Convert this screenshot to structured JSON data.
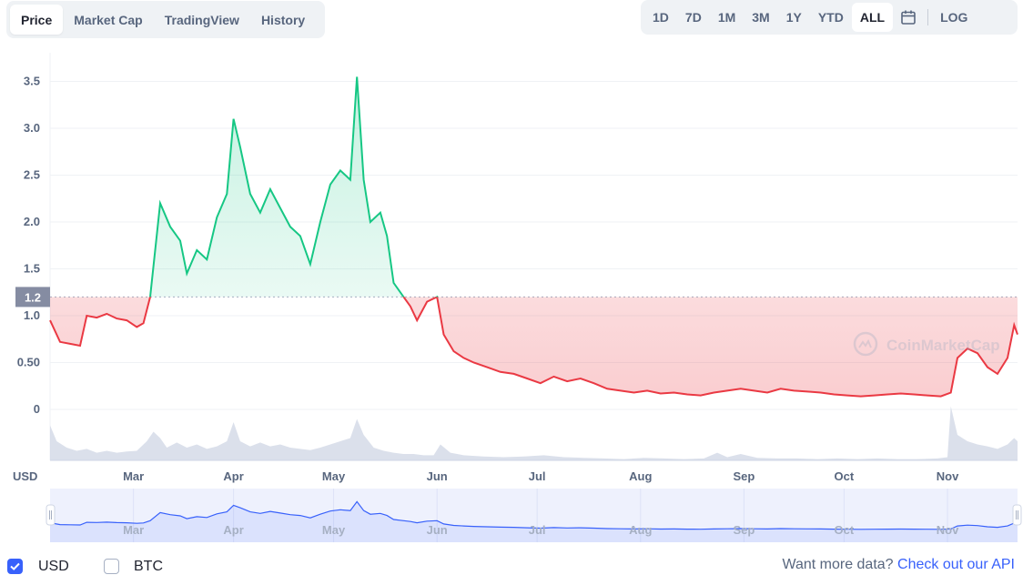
{
  "tabs": [
    {
      "label": "Price",
      "active": true
    },
    {
      "label": "Market Cap",
      "active": false
    },
    {
      "label": "TradingView",
      "active": false
    },
    {
      "label": "History",
      "active": false
    }
  ],
  "ranges": [
    {
      "label": "1D",
      "active": false
    },
    {
      "label": "7D",
      "active": false
    },
    {
      "label": "1M",
      "active": false
    },
    {
      "label": "3M",
      "active": false
    },
    {
      "label": "1Y",
      "active": false
    },
    {
      "label": "YTD",
      "active": false
    },
    {
      "label": "ALL",
      "active": true
    }
  ],
  "calendar_icon": "calendar-icon",
  "log_label": "LOG",
  "currency_label": "USD",
  "watermark": "CoinMarketCap",
  "footer": {
    "usd_label": "USD",
    "usd_checked": true,
    "btc_label": "BTC",
    "btc_checked": false,
    "more_text": "Want more data?",
    "api_link": "Check out our API"
  },
  "colors": {
    "up": "#16c784",
    "down": "#ea3943",
    "accent": "#3861fb",
    "volume": "#cfd6e4"
  },
  "chart_data": {
    "type": "area",
    "baseline": 1.2,
    "ylim": [
      0,
      3.6
    ],
    "yticks": [
      {
        "v": 0,
        "label": "0"
      },
      {
        "v": 0.5,
        "label": "0.50"
      },
      {
        "v": 1.0,
        "label": "1.0"
      },
      {
        "v": 1.5,
        "label": "1.5"
      },
      {
        "v": 2.0,
        "label": "2.0"
      },
      {
        "v": 2.5,
        "label": "2.5"
      },
      {
        "v": 3.0,
        "label": "3.0"
      },
      {
        "v": 3.5,
        "label": "3.5"
      }
    ],
    "baseline_label": "1.2",
    "xlim": [
      0,
      290
    ],
    "xticks": [
      {
        "label": "Mar",
        "x": 25
      },
      {
        "label": "Apr",
        "x": 55
      },
      {
        "label": "May",
        "x": 85
      },
      {
        "label": "Jun",
        "x": 116
      },
      {
        "label": "Jul",
        "x": 146
      },
      {
        "label": "Aug",
        "x": 177
      },
      {
        "label": "Sep",
        "x": 208
      },
      {
        "label": "Oct",
        "x": 238
      },
      {
        "label": "Nov",
        "x": 269
      }
    ],
    "price": [
      [
        0,
        0.95
      ],
      [
        3,
        0.72
      ],
      [
        6,
        0.7
      ],
      [
        9,
        0.68
      ],
      [
        11,
        1.0
      ],
      [
        14,
        0.98
      ],
      [
        17,
        1.02
      ],
      [
        20,
        0.97
      ],
      [
        23,
        0.95
      ],
      [
        26,
        0.88
      ],
      [
        28,
        0.92
      ],
      [
        30,
        1.2
      ],
      [
        33,
        2.2
      ],
      [
        36,
        1.95
      ],
      [
        39,
        1.8
      ],
      [
        41,
        1.45
      ],
      [
        44,
        1.7
      ],
      [
        47,
        1.6
      ],
      [
        50,
        2.05
      ],
      [
        53,
        2.3
      ],
      [
        55,
        3.1
      ],
      [
        57,
        2.8
      ],
      [
        60,
        2.3
      ],
      [
        63,
        2.1
      ],
      [
        66,
        2.35
      ],
      [
        69,
        2.15
      ],
      [
        72,
        1.95
      ],
      [
        75,
        1.85
      ],
      [
        78,
        1.55
      ],
      [
        81,
        2.0
      ],
      [
        84,
        2.4
      ],
      [
        87,
        2.55
      ],
      [
        90,
        2.45
      ],
      [
        92,
        3.55
      ],
      [
        94,
        2.45
      ],
      [
        96,
        2.0
      ],
      [
        99,
        2.1
      ],
      [
        101,
        1.85
      ],
      [
        103,
        1.35
      ],
      [
        106,
        1.2
      ],
      [
        108,
        1.1
      ],
      [
        110,
        0.95
      ],
      [
        113,
        1.15
      ],
      [
        116,
        1.2
      ],
      [
        118,
        0.8
      ],
      [
        121,
        0.62
      ],
      [
        124,
        0.55
      ],
      [
        127,
        0.5
      ],
      [
        131,
        0.45
      ],
      [
        135,
        0.4
      ],
      [
        139,
        0.38
      ],
      [
        143,
        0.33
      ],
      [
        147,
        0.28
      ],
      [
        151,
        0.35
      ],
      [
        155,
        0.3
      ],
      [
        159,
        0.33
      ],
      [
        163,
        0.28
      ],
      [
        167,
        0.22
      ],
      [
        171,
        0.2
      ],
      [
        175,
        0.18
      ],
      [
        179,
        0.2
      ],
      [
        183,
        0.17
      ],
      [
        187,
        0.18
      ],
      [
        191,
        0.16
      ],
      [
        195,
        0.15
      ],
      [
        199,
        0.18
      ],
      [
        203,
        0.2
      ],
      [
        207,
        0.22
      ],
      [
        211,
        0.2
      ],
      [
        215,
        0.18
      ],
      [
        219,
        0.22
      ],
      [
        223,
        0.2
      ],
      [
        227,
        0.19
      ],
      [
        231,
        0.18
      ],
      [
        235,
        0.16
      ],
      [
        239,
        0.15
      ],
      [
        243,
        0.14
      ],
      [
        247,
        0.15
      ],
      [
        251,
        0.16
      ],
      [
        255,
        0.17
      ],
      [
        259,
        0.16
      ],
      [
        263,
        0.15
      ],
      [
        267,
        0.14
      ],
      [
        270,
        0.18
      ],
      [
        272,
        0.55
      ],
      [
        275,
        0.65
      ],
      [
        278,
        0.6
      ],
      [
        281,
        0.45
      ],
      [
        284,
        0.38
      ],
      [
        287,
        0.55
      ],
      [
        289,
        0.9
      ],
      [
        290,
        0.8
      ]
    ],
    "volume": [
      [
        0,
        0.55
      ],
      [
        2,
        0.3
      ],
      [
        5,
        0.2
      ],
      [
        8,
        0.15
      ],
      [
        11,
        0.18
      ],
      [
        14,
        0.12
      ],
      [
        17,
        0.15
      ],
      [
        20,
        0.12
      ],
      [
        23,
        0.14
      ],
      [
        26,
        0.15
      ],
      [
        29,
        0.3
      ],
      [
        31,
        0.45
      ],
      [
        33,
        0.35
      ],
      [
        35,
        0.2
      ],
      [
        38,
        0.28
      ],
      [
        41,
        0.2
      ],
      [
        44,
        0.25
      ],
      [
        47,
        0.18
      ],
      [
        50,
        0.22
      ],
      [
        53,
        0.3
      ],
      [
        55,
        0.6
      ],
      [
        57,
        0.3
      ],
      [
        60,
        0.22
      ],
      [
        63,
        0.28
      ],
      [
        66,
        0.22
      ],
      [
        69,
        0.25
      ],
      [
        72,
        0.2
      ],
      [
        75,
        0.18
      ],
      [
        78,
        0.16
      ],
      [
        81,
        0.2
      ],
      [
        84,
        0.25
      ],
      [
        87,
        0.3
      ],
      [
        90,
        0.35
      ],
      [
        92,
        0.65
      ],
      [
        94,
        0.4
      ],
      [
        97,
        0.2
      ],
      [
        100,
        0.15
      ],
      [
        103,
        0.12
      ],
      [
        106,
        0.1
      ],
      [
        109,
        0.1
      ],
      [
        112,
        0.08
      ],
      [
        115,
        0.08
      ],
      [
        117,
        0.25
      ],
      [
        120,
        0.12
      ],
      [
        124,
        0.08
      ],
      [
        130,
        0.06
      ],
      [
        136,
        0.05
      ],
      [
        142,
        0.06
      ],
      [
        148,
        0.08
      ],
      [
        154,
        0.05
      ],
      [
        160,
        0.04
      ],
      [
        166,
        0.03
      ],
      [
        172,
        0.02
      ],
      [
        178,
        0.04
      ],
      [
        184,
        0.03
      ],
      [
        190,
        0.02
      ],
      [
        196,
        0.03
      ],
      [
        200,
        0.12
      ],
      [
        203,
        0.05
      ],
      [
        207,
        0.1
      ],
      [
        212,
        0.04
      ],
      [
        218,
        0.03
      ],
      [
        224,
        0.03
      ],
      [
        230,
        0.02
      ],
      [
        236,
        0.03
      ],
      [
        242,
        0.02
      ],
      [
        248,
        0.03
      ],
      [
        254,
        0.02
      ],
      [
        260,
        0.02
      ],
      [
        266,
        0.03
      ],
      [
        269,
        0.05
      ],
      [
        270,
        0.85
      ],
      [
        272,
        0.4
      ],
      [
        275,
        0.3
      ],
      [
        278,
        0.25
      ],
      [
        281,
        0.22
      ],
      [
        284,
        0.18
      ],
      [
        287,
        0.25
      ],
      [
        289,
        0.35
      ],
      [
        290,
        0.3
      ]
    ]
  }
}
